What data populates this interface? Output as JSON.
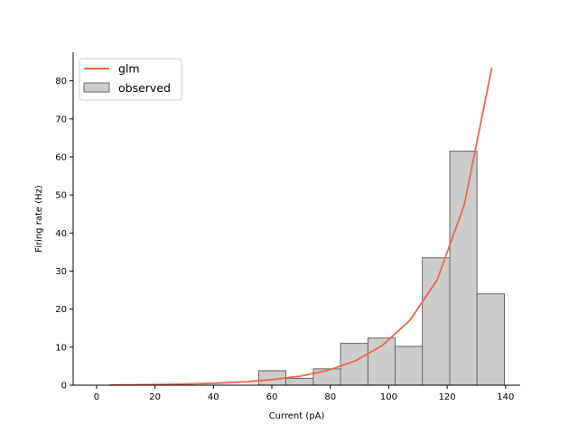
{
  "chart_data": {
    "type": "bar",
    "xlabel": "Current (pA)",
    "ylabel": "Firing rate (Hz)",
    "xlim": [
      -8,
      145
    ],
    "ylim": [
      0,
      87.5
    ],
    "xticks": [
      0,
      20,
      40,
      60,
      80,
      100,
      120,
      140
    ],
    "yticks": [
      0,
      10,
      20,
      30,
      40,
      50,
      60,
      70,
      80
    ],
    "grid": false,
    "legend_position": "top-left",
    "series": [
      {
        "name": "glm",
        "kind": "line",
        "color": "#f0654a",
        "x": [
          4.5,
          13.8,
          23.2,
          32.5,
          41.9,
          51.2,
          60.5,
          69.9,
          79.2,
          88.6,
          97.9,
          107.2,
          116.6,
          125.9,
          135.3
        ],
        "y": [
          0.05,
          0.1,
          0.2,
          0.35,
          0.55,
          0.9,
          1.5,
          2.4,
          3.9,
          6.4,
          10.5,
          17.0,
          27.7,
          47.5,
          83.5
        ]
      },
      {
        "name": "observed",
        "kind": "histogram",
        "color": "#cccccc",
        "edge_color": "#666666",
        "bin_edges": [
          55.5,
          64.8,
          74.2,
          83.5,
          92.9,
          102.2,
          111.5,
          120.9,
          130.2,
          139.6
        ],
        "values": [
          3.8,
          1.8,
          4.3,
          11.0,
          12.4,
          10.2,
          33.5,
          61.5,
          24.0
        ]
      }
    ]
  }
}
